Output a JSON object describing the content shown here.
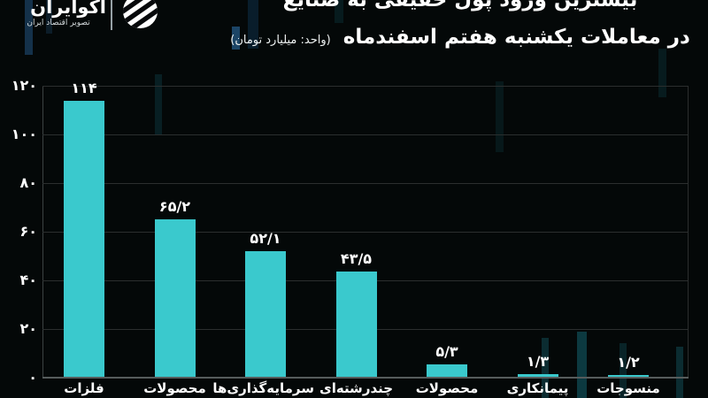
{
  "header": {
    "logo": {
      "brand": "اکوایران",
      "tagline": "تصویر اقتصاد ایران"
    },
    "title_line1": "بیشترین ورود پول حقیقی به صنایع",
    "title_line2": "در معاملات یکشنبه هفتم اسفندماه",
    "title_unit": "(واحد: میلیارد تومان)"
  },
  "chart_data": {
    "type": "bar",
    "title": "بیشترین ورود پول حقیقی به صنایع",
    "subtitle": "در معاملات یکشنبه هفتم اسفندماه",
    "unit_note": "(واحد: میلیارد تومان)",
    "direction": "rtl",
    "category_order": "left-to-right",
    "categories": [
      "فلزات",
      "محصولات",
      "سرمایه‌گذاری‌ها",
      "چندرشته‌ای",
      "محصولات",
      "پیمانکاری",
      "منسوجات"
    ],
    "values": [
      114,
      65.2,
      52.1,
      43.5,
      5.3,
      1.3,
      1.2
    ],
    "value_labels": [
      "۱۱۴",
      "۶۵/۲",
      "۵۲/۱",
      "۴۳/۵",
      "۵/۳",
      "۱/۳",
      "۱/۲"
    ],
    "y_ticks": [
      0,
      20,
      40,
      60,
      80,
      100,
      120
    ],
    "y_tick_labels": [
      "۰",
      "۲۰",
      "۴۰",
      "۶۰",
      "۸۰",
      "۱۰۰",
      "۱۲۰"
    ],
    "ylim": [
      0,
      120
    ],
    "grid": true,
    "legend": false
  },
  "colors": {
    "background": "#040808",
    "bar": "#3ac9cd",
    "gridline": "#2b2e2e",
    "axis": "#565c5c",
    "text": "#ffffff"
  }
}
